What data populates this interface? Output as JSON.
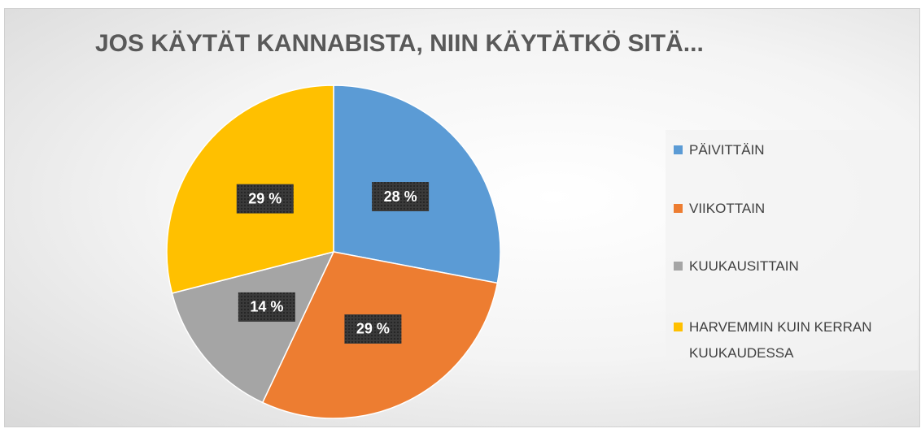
{
  "chart_data": {
    "type": "pie",
    "title": "JOS KÄYTÄT KANNABISTA, NIIN KÄYTÄTKÖ SITÄ...",
    "categories": [
      "PÄIVITTÄIN",
      "VIIKOTTAIN",
      "KUUKAUSITTAIN",
      "HARVEMMIN KUIN KERRAN KUUKAUDESSA"
    ],
    "values": [
      28,
      29,
      14,
      29
    ],
    "value_labels": [
      "28 %",
      "29 %",
      "14 %",
      "29 %"
    ],
    "colors": [
      "#5b9bd5",
      "#ed7d31",
      "#a5a5a5",
      "#ffc000"
    ],
    "legend": "right"
  }
}
